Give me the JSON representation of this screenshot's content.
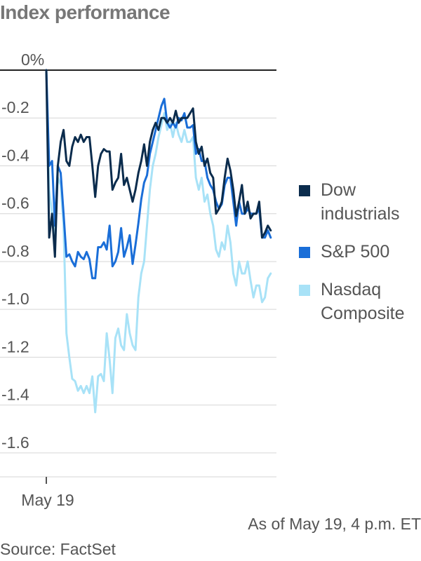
{
  "title": "Index performance",
  "chart_data": {
    "type": "line",
    "title": "Index performance",
    "xlabel": "",
    "ylabel": "",
    "x_tick_labels": [
      "May 19"
    ],
    "y_ticks": [
      0,
      -0.2,
      -0.4,
      -0.6,
      -0.8,
      -1.0,
      -1.2,
      -1.4,
      -1.6
    ],
    "y_tick_labels": [
      "0%",
      "-0.2",
      "-0.4",
      "-0.6",
      "-0.8",
      "-1.0",
      "-1.2",
      "-1.4",
      "-1.6"
    ],
    "ylim": [
      -1.7,
      0.0
    ],
    "xlim": [
      0,
      80
    ],
    "x_unit": "minutes after the open (9:30 a.m. to 4 p.m. ET, 5-minute steps)",
    "grid": "horizontal",
    "legend_position": "right",
    "series": [
      {
        "name": "Dow industrials",
        "color": "#0b2c4d",
        "x": [
          0,
          1,
          2,
          3,
          4,
          5,
          6,
          7,
          8,
          9,
          10,
          11,
          12,
          13,
          14,
          15,
          16,
          17,
          18,
          19,
          20,
          21,
          22,
          23,
          24,
          25,
          26,
          27,
          28,
          29,
          30,
          31,
          32,
          33,
          34,
          35,
          36,
          37,
          38,
          39,
          40,
          41,
          42,
          43,
          44,
          45,
          46,
          47,
          48,
          49,
          50,
          51,
          52,
          53,
          54,
          55,
          56,
          57,
          58,
          59,
          60,
          61,
          62,
          63,
          64,
          65,
          66,
          67,
          68,
          69,
          70,
          71,
          72,
          73,
          74,
          75,
          76,
          77,
          78
        ],
        "values": [
          0,
          -0.7,
          -0.6,
          -0.78,
          -0.4,
          -0.3,
          -0.25,
          -0.38,
          -0.4,
          -0.32,
          -0.28,
          -0.3,
          -0.27,
          -0.3,
          -0.28,
          -0.28,
          -0.4,
          -0.53,
          -0.4,
          -0.35,
          -0.33,
          -0.34,
          -0.34,
          -0.5,
          -0.47,
          -0.45,
          -0.35,
          -0.48,
          -0.45,
          -0.5,
          -0.55,
          -0.5,
          -0.43,
          -0.38,
          -0.31,
          -0.4,
          -0.3,
          -0.25,
          -0.22,
          -0.25,
          -0.2,
          -0.2,
          -0.22,
          -0.2,
          -0.22,
          -0.17,
          -0.22,
          -0.2,
          -0.2,
          -0.2,
          -0.18,
          -0.16,
          -0.3,
          -0.35,
          -0.32,
          -0.4,
          -0.37,
          -0.43,
          -0.45,
          -0.6,
          -0.58,
          -0.55,
          -0.45,
          -0.37,
          -0.42,
          -0.5,
          -0.61,
          -0.55,
          -0.48,
          -0.6,
          -0.55,
          -0.62,
          -0.6,
          -0.6,
          -0.55,
          -0.7,
          -0.68,
          -0.65,
          -0.67
        ]
      },
      {
        "name": "S&P 500",
        "color": "#1a6ed8",
        "x": [
          0,
          1,
          2,
          3,
          4,
          5,
          6,
          7,
          8,
          9,
          10,
          11,
          12,
          13,
          14,
          15,
          16,
          17,
          18,
          19,
          20,
          21,
          22,
          23,
          24,
          25,
          26,
          27,
          28,
          29,
          30,
          31,
          32,
          33,
          34,
          35,
          36,
          37,
          38,
          39,
          40,
          41,
          42,
          43,
          44,
          45,
          46,
          47,
          48,
          49,
          50,
          51,
          52,
          53,
          54,
          55,
          56,
          57,
          58,
          59,
          60,
          61,
          62,
          63,
          64,
          65,
          66,
          67,
          68,
          69,
          70,
          71,
          72,
          73,
          74,
          75,
          76,
          77,
          78
        ],
        "values": [
          0,
          -0.4,
          -0.38,
          -0.65,
          -0.4,
          -0.43,
          -0.6,
          -0.78,
          -0.77,
          -0.8,
          -0.82,
          -0.76,
          -0.78,
          -0.79,
          -0.76,
          -0.79,
          -0.87,
          -0.87,
          -0.74,
          -0.74,
          -0.72,
          -0.75,
          -0.65,
          -0.82,
          -0.8,
          -0.76,
          -0.66,
          -0.78,
          -0.74,
          -0.69,
          -0.81,
          -0.73,
          -0.64,
          -0.54,
          -0.47,
          -0.44,
          -0.35,
          -0.3,
          -0.25,
          -0.2,
          -0.15,
          -0.12,
          -0.22,
          -0.24,
          -0.22,
          -0.24,
          -0.2,
          -0.21,
          -0.18,
          -0.24,
          -0.24,
          -0.23,
          -0.35,
          -0.33,
          -0.38,
          -0.38,
          -0.45,
          -0.48,
          -0.5,
          -0.55,
          -0.58,
          -0.56,
          -0.48,
          -0.45,
          -0.45,
          -0.55,
          -0.65,
          -0.55,
          -0.6,
          -0.6,
          -0.58,
          -0.6,
          -0.6,
          -0.6,
          -0.58,
          -0.7,
          -0.7,
          -0.67,
          -0.7
        ]
      },
      {
        "name": "Nasdaq Composite",
        "color": "#a8e2f7",
        "x": [
          0,
          1,
          2,
          3,
          4,
          5,
          6,
          7,
          8,
          9,
          10,
          11,
          12,
          13,
          14,
          15,
          16,
          17,
          18,
          19,
          20,
          21,
          22,
          23,
          24,
          25,
          26,
          27,
          28,
          29,
          30,
          31,
          32,
          33,
          34,
          35,
          36,
          37,
          38,
          39,
          40,
          41,
          42,
          43,
          44,
          45,
          46,
          47,
          48,
          49,
          50,
          51,
          52,
          53,
          54,
          55,
          56,
          57,
          58,
          59,
          60,
          61,
          62,
          63,
          64,
          65,
          66,
          67,
          68,
          69,
          70,
          71,
          72,
          73,
          74,
          75,
          76,
          77,
          78
        ],
        "values": [
          0,
          -0.5,
          -0.6,
          -0.7,
          -0.45,
          -0.48,
          -0.65,
          -1.1,
          -1.2,
          -1.29,
          -1.3,
          -1.34,
          -1.32,
          -1.35,
          -1.32,
          -1.35,
          -1.28,
          -1.43,
          -1.28,
          -1.27,
          -1.3,
          -1.1,
          -1.21,
          -1.35,
          -1.12,
          -1.08,
          -1.15,
          -1.17,
          -1.02,
          -1.1,
          -1.15,
          -1.17,
          -0.95,
          -0.85,
          -0.8,
          -0.65,
          -0.5,
          -0.4,
          -0.35,
          -0.28,
          -0.23,
          -0.18,
          -0.25,
          -0.22,
          -0.28,
          -0.22,
          -0.27,
          -0.3,
          -0.25,
          -0.3,
          -0.3,
          -0.28,
          -0.45,
          -0.5,
          -0.45,
          -0.55,
          -0.52,
          -0.6,
          -0.65,
          -0.75,
          -0.78,
          -0.72,
          -0.75,
          -0.65,
          -0.72,
          -0.85,
          -0.9,
          -0.8,
          -0.85,
          -0.85,
          -0.8,
          -0.88,
          -0.95,
          -0.9,
          -0.9,
          -0.97,
          -0.95,
          -0.87,
          -0.85
        ]
      }
    ]
  },
  "legend": {
    "items": [
      {
        "label": "Dow industrials",
        "color": "#0b2c4d"
      },
      {
        "label": "S&P 500",
        "color": "#1a6ed8"
      },
      {
        "label": "Nasdaq Composite",
        "color": "#a8e2f7"
      }
    ]
  },
  "note": "As of May 19, 4 p.m. ET",
  "source": "Source: FactSet",
  "colors": {
    "grid": "#d6d6d6",
    "zero_line": "#222222",
    "text": "#555555"
  }
}
